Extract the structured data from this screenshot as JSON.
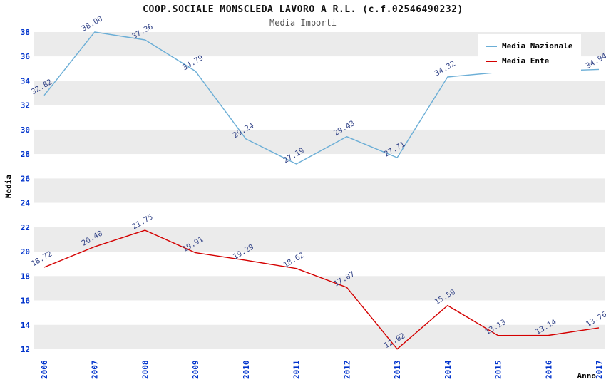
{
  "page": {
    "title": "COOP.SOCIALE MONSCLEDA LAVORO A R.L. (c.f.02546490232)",
    "subtitle": "Media Importi"
  },
  "chart_data": {
    "type": "line",
    "title": "COOP.SOCIALE MONSCLEDA LAVORO A R.L. (c.f.02546490232)",
    "subtitle": "Media Importi",
    "xlabel": "Anno",
    "ylabel": "Media",
    "ylim": [
      12,
      38
    ],
    "ytick_step": 2,
    "grid": "alternating-horizontal-bands",
    "legend_position": "top-right",
    "categories": [
      "2006",
      "2007",
      "2008",
      "2009",
      "2010",
      "2011",
      "2012",
      "2013",
      "2014",
      "2015",
      "2016",
      "2017"
    ],
    "series": [
      {
        "name": "Media Nazionale",
        "color": "#6baed6",
        "values": [
          32.82,
          38.0,
          37.36,
          34.79,
          29.24,
          27.19,
          29.43,
          27.71,
          34.32,
          34.7,
          34.8,
          34.94
        ],
        "labels": [
          "32.82",
          "38.00",
          "37.36",
          "34.79",
          "29.24",
          "27.19",
          "29.43",
          "27.71",
          "34.32",
          "",
          "",
          "34.94"
        ]
      },
      {
        "name": "Media Ente",
        "color": "#d40000",
        "values": [
          18.72,
          20.4,
          21.75,
          19.91,
          19.29,
          18.62,
          17.07,
          12.02,
          15.59,
          13.13,
          13.14,
          13.76
        ],
        "labels": [
          "18.72",
          "20.40",
          "21.75",
          "19.91",
          "19.29",
          "18.62",
          "17.07",
          "12.02",
          "15.59",
          "13.13",
          "13.14",
          "13.76"
        ]
      }
    ],
    "colors": {
      "band_gray": "#ebebeb",
      "band_white": "#ffffff",
      "tick_label": "#0033cc",
      "point_label": "#334488"
    }
  }
}
